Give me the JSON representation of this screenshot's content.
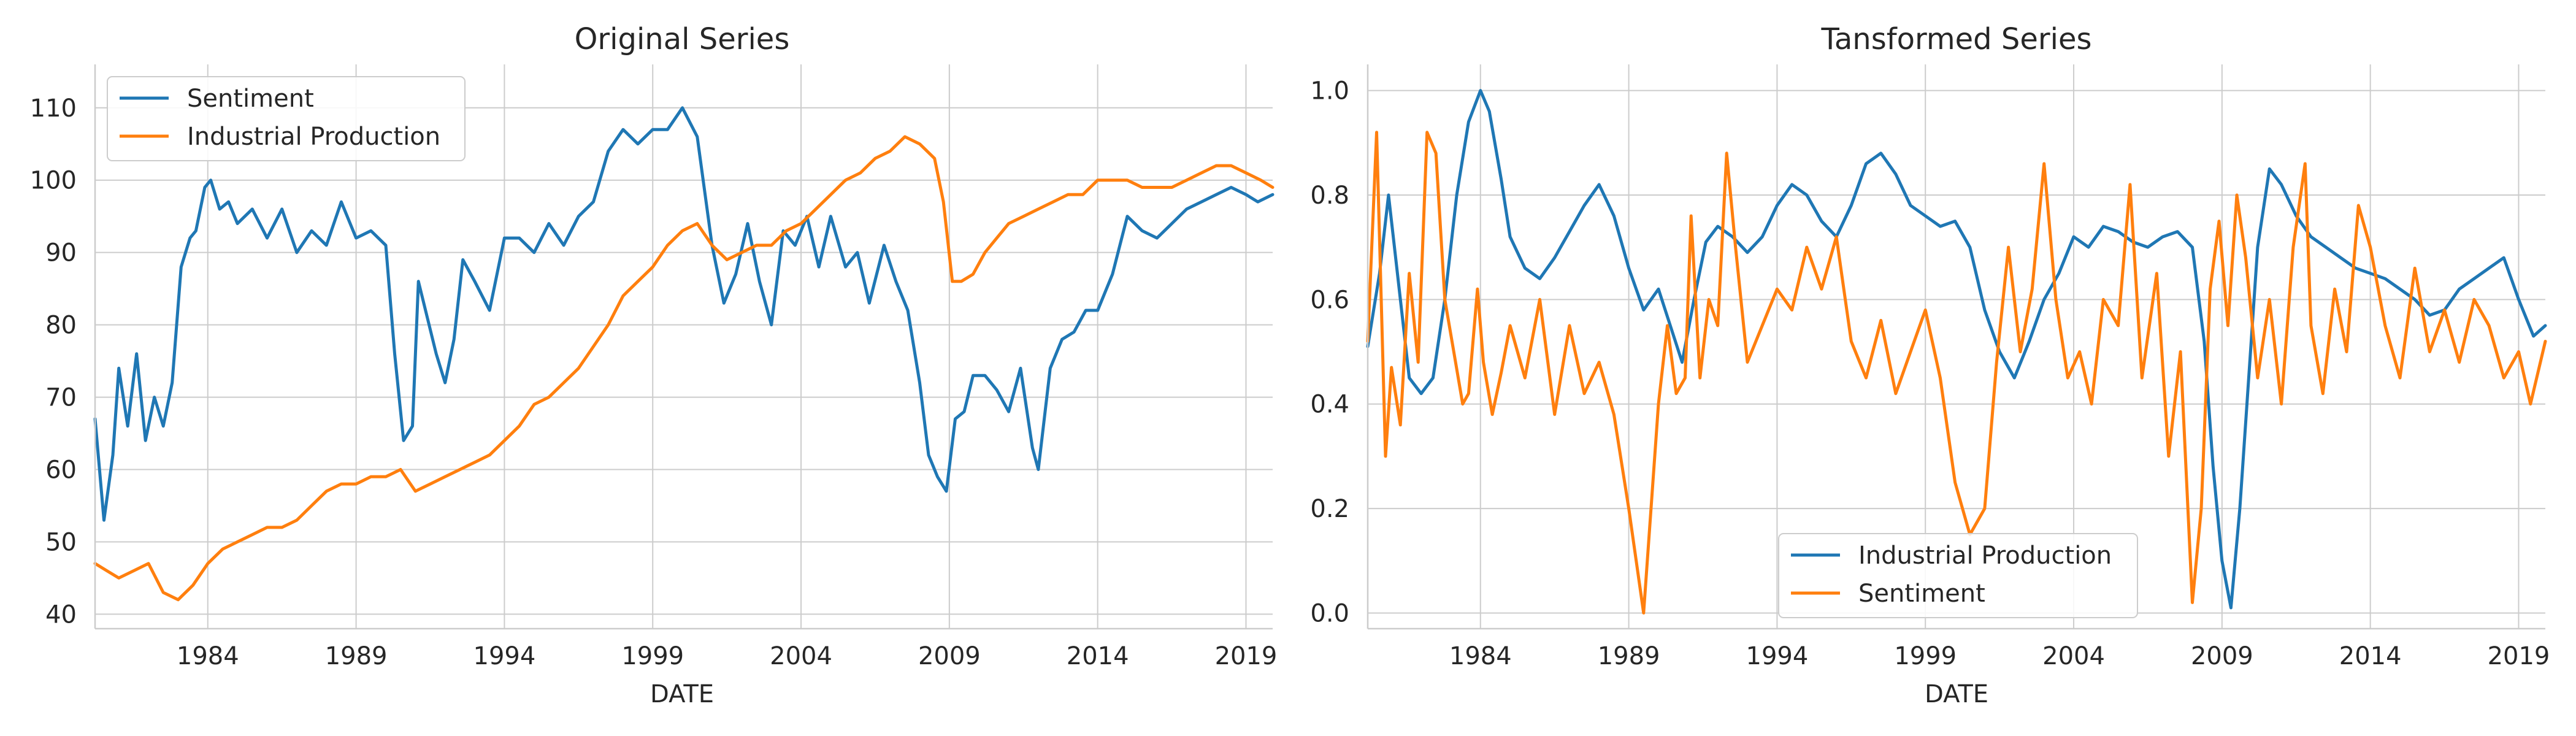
{
  "colors": {
    "blue": "#1f77b4",
    "orange": "#ff7f0e",
    "grid": "#cccccc",
    "text": "#262626"
  },
  "chart_data": [
    {
      "type": "line",
      "title": "Original Series",
      "xlabel": "DATE",
      "ylabel": "",
      "xlim": [
        1980.2,
        2019.9
      ],
      "ylim": [
        38,
        116
      ],
      "xticks": [
        1984,
        1989,
        1994,
        1999,
        2004,
        2009,
        2014,
        2019
      ],
      "xtick_labels": [
        "1984",
        "1989",
        "1994",
        "1999",
        "2004",
        "2009",
        "2014",
        "2019"
      ],
      "yticks": [
        40,
        50,
        60,
        70,
        80,
        90,
        100,
        110
      ],
      "ytick_labels": [
        "40",
        "50",
        "60",
        "70",
        "80",
        "90",
        "100",
        "110"
      ],
      "grid": true,
      "legend_position": "upper-left",
      "series": [
        {
          "name": "Sentiment",
          "color": "#1f77b4",
          "x": [
            1980.2,
            1980.5,
            1980.8,
            1981.0,
            1981.3,
            1981.6,
            1981.9,
            1982.2,
            1982.5,
            1982.8,
            1983.1,
            1983.4,
            1983.6,
            1983.9,
            1984.1,
            1984.4,
            1984.7,
            1985.0,
            1985.5,
            1986.0,
            1986.5,
            1987.0,
            1987.5,
            1988.0,
            1988.5,
            1989.0,
            1989.5,
            1990.0,
            1990.3,
            1990.6,
            1990.9,
            1991.1,
            1991.4,
            1991.7,
            1992.0,
            1992.3,
            1992.6,
            1993.0,
            1993.5,
            1994.0,
            1994.5,
            1995.0,
            1995.5,
            1996.0,
            1996.5,
            1997.0,
            1997.5,
            1998.0,
            1998.5,
            1999.0,
            1999.5,
            2000.0,
            2000.5,
            2001.0,
            2001.4,
            2001.8,
            2002.2,
            2002.6,
            2003.0,
            2003.4,
            2003.8,
            2004.2,
            2004.6,
            2005.0,
            2005.5,
            2005.9,
            2006.3,
            2006.8,
            2007.2,
            2007.6,
            2008.0,
            2008.3,
            2008.6,
            2008.9,
            2009.2,
            2009.5,
            2009.8,
            2010.2,
            2010.6,
            2011.0,
            2011.4,
            2011.8,
            2012.0,
            2012.4,
            2012.8,
            2013.2,
            2013.6,
            2014.0,
            2014.5,
            2015.0,
            2015.5,
            2016.0,
            2016.5,
            2017.0,
            2017.5,
            2018.0,
            2018.5,
            2019.0,
            2019.4,
            2019.9
          ],
          "values": [
            67,
            53,
            62,
            74,
            66,
            76,
            64,
            70,
            66,
            72,
            88,
            92,
            93,
            99,
            100,
            96,
            97,
            94,
            96,
            92,
            96,
            90,
            93,
            91,
            97,
            92,
            93,
            91,
            76,
            64,
            66,
            86,
            81,
            76,
            72,
            78,
            89,
            86,
            82,
            92,
            92,
            90,
            94,
            91,
            95,
            97,
            104,
            107,
            105,
            107,
            107,
            110,
            106,
            91,
            83,
            87,
            94,
            86,
            80,
            93,
            91,
            95,
            88,
            95,
            88,
            90,
            83,
            91,
            86,
            82,
            72,
            62,
            59,
            57,
            67,
            68,
            73,
            73,
            71,
            68,
            74,
            63,
            60,
            74,
            78,
            79,
            82,
            82,
            87,
            95,
            93,
            92,
            94,
            96,
            97,
            98,
            99,
            98,
            97,
            98
          ]
        },
        {
          "name": "Industrial Production",
          "color": "#ff7f0e",
          "x": [
            1980.2,
            1980.6,
            1981.0,
            1981.5,
            1982.0,
            1982.5,
            1983.0,
            1983.5,
            1984.0,
            1984.5,
            1985.0,
            1985.5,
            1986.0,
            1986.5,
            1987.0,
            1987.5,
            1988.0,
            1988.5,
            1989.0,
            1989.5,
            1990.0,
            1990.5,
            1991.0,
            1991.5,
            1992.0,
            1992.5,
            1993.0,
            1993.5,
            1994.0,
            1994.5,
            1995.0,
            1995.5,
            1996.0,
            1996.5,
            1997.0,
            1997.5,
            1998.0,
            1998.5,
            1999.0,
            1999.5,
            2000.0,
            2000.5,
            2001.0,
            2001.5,
            2002.0,
            2002.5,
            2003.0,
            2003.5,
            2004.0,
            2004.5,
            2005.0,
            2005.5,
            2006.0,
            2006.5,
            2007.0,
            2007.5,
            2008.0,
            2008.5,
            2008.8,
            2009.1,
            2009.4,
            2009.8,
            2010.2,
            2010.6,
            2011.0,
            2011.5,
            2012.0,
            2012.5,
            2013.0,
            2013.5,
            2014.0,
            2014.5,
            2015.0,
            2015.5,
            2016.0,
            2016.5,
            2017.0,
            2017.5,
            2018.0,
            2018.5,
            2019.0,
            2019.5,
            2019.9
          ],
          "values": [
            47,
            46,
            45,
            46,
            47,
            43,
            42,
            44,
            47,
            49,
            50,
            51,
            52,
            52,
            53,
            55,
            57,
            58,
            58,
            59,
            59,
            60,
            57,
            58,
            59,
            60,
            61,
            62,
            64,
            66,
            69,
            70,
            72,
            74,
            77,
            80,
            84,
            86,
            88,
            91,
            93,
            94,
            91,
            89,
            90,
            91,
            91,
            93,
            94,
            96,
            98,
            100,
            101,
            103,
            104,
            106,
            105,
            103,
            97,
            86,
            86,
            87,
            90,
            92,
            94,
            95,
            96,
            97,
            98,
            98,
            100,
            100,
            100,
            99,
            99,
            99,
            100,
            101,
            102,
            102,
            101,
            100,
            99
          ]
        }
      ]
    },
    {
      "type": "line",
      "title": "Tansformed Series",
      "xlabel": "DATE",
      "ylabel": "",
      "xlim": [
        1980.2,
        2019.9
      ],
      "ylim": [
        -0.03,
        1.05
      ],
      "xticks": [
        1984,
        1989,
        1994,
        1999,
        2004,
        2009,
        2014,
        2019
      ],
      "xtick_labels": [
        "1984",
        "1989",
        "1994",
        "1999",
        "2004",
        "2009",
        "2014",
        "2019"
      ],
      "yticks": [
        0.0,
        0.2,
        0.4,
        0.6,
        0.8,
        1.0
      ],
      "ytick_labels": [
        "0.0",
        "0.2",
        "0.4",
        "0.6",
        "0.8",
        "1.0"
      ],
      "grid": true,
      "legend_position": "lower-center",
      "series": [
        {
          "name": "Industrial Production",
          "color": "#1f77b4",
          "x": [
            1980.2,
            1980.6,
            1980.9,
            1981.2,
            1981.6,
            1982.0,
            1982.4,
            1982.8,
            1983.2,
            1983.6,
            1984.0,
            1984.3,
            1984.7,
            1985.0,
            1985.5,
            1986.0,
            1986.5,
            1987.0,
            1987.5,
            1988.0,
            1988.5,
            1989.0,
            1989.5,
            1990.0,
            1990.4,
            1990.8,
            1991.2,
            1991.6,
            1992.0,
            1992.5,
            1993.0,
            1993.5,
            1994.0,
            1994.5,
            1995.0,
            1995.5,
            1996.0,
            1996.5,
            1997.0,
            1997.5,
            1998.0,
            1998.5,
            1999.0,
            1999.5,
            2000.0,
            2000.5,
            2001.0,
            2001.5,
            2002.0,
            2002.5,
            2003.0,
            2003.5,
            2004.0,
            2004.5,
            2005.0,
            2005.5,
            2006.0,
            2006.5,
            2007.0,
            2007.5,
            2008.0,
            2008.4,
            2008.7,
            2009.0,
            2009.3,
            2009.6,
            2009.9,
            2010.2,
            2010.6,
            2011.0,
            2011.5,
            2012.0,
            2012.5,
            2013.0,
            2013.5,
            2014.0,
            2014.5,
            2015.0,
            2015.5,
            2016.0,
            2016.5,
            2017.0,
            2017.5,
            2018.0,
            2018.5,
            2019.0,
            2019.5,
            2019.9
          ],
          "values": [
            0.51,
            0.65,
            0.8,
            0.65,
            0.45,
            0.42,
            0.45,
            0.6,
            0.8,
            0.94,
            1.0,
            0.96,
            0.83,
            0.72,
            0.66,
            0.64,
            0.68,
            0.73,
            0.78,
            0.82,
            0.76,
            0.66,
            0.58,
            0.62,
            0.55,
            0.48,
            0.6,
            0.71,
            0.74,
            0.72,
            0.69,
            0.72,
            0.78,
            0.82,
            0.8,
            0.75,
            0.72,
            0.78,
            0.86,
            0.88,
            0.84,
            0.78,
            0.76,
            0.74,
            0.75,
            0.7,
            0.58,
            0.5,
            0.45,
            0.52,
            0.6,
            0.65,
            0.72,
            0.7,
            0.74,
            0.73,
            0.71,
            0.7,
            0.72,
            0.73,
            0.7,
            0.52,
            0.28,
            0.1,
            0.01,
            0.2,
            0.45,
            0.7,
            0.85,
            0.82,
            0.76,
            0.72,
            0.7,
            0.68,
            0.66,
            0.65,
            0.64,
            0.62,
            0.6,
            0.57,
            0.58,
            0.62,
            0.64,
            0.66,
            0.68,
            0.6,
            0.53,
            0.55
          ]
        },
        {
          "name": "Sentiment",
          "color": "#ff7f0e",
          "x": [
            1980.2,
            1980.5,
            1980.8,
            1981.0,
            1981.3,
            1981.6,
            1981.9,
            1982.2,
            1982.5,
            1982.8,
            1983.1,
            1983.4,
            1983.6,
            1983.9,
            1984.1,
            1984.4,
            1984.7,
            1985.0,
            1985.5,
            1986.0,
            1986.5,
            1987.0,
            1987.5,
            1988.0,
            1988.5,
            1989.0,
            1989.5,
            1990.0,
            1990.3,
            1990.6,
            1990.9,
            1991.1,
            1991.4,
            1991.7,
            1992.0,
            1992.3,
            1992.6,
            1993.0,
            1993.5,
            1994.0,
            1994.5,
            1995.0,
            1995.5,
            1996.0,
            1996.5,
            1997.0,
            1997.5,
            1998.0,
            1998.5,
            1999.0,
            1999.5,
            2000.0,
            2000.5,
            2001.0,
            2001.4,
            2001.8,
            2002.2,
            2002.6,
            2003.0,
            2003.4,
            2003.8,
            2004.2,
            2004.6,
            2005.0,
            2005.5,
            2005.9,
            2006.3,
            2006.8,
            2007.2,
            2007.6,
            2008.0,
            2008.3,
            2008.6,
            2008.9,
            2009.2,
            2009.5,
            2009.8,
            2010.2,
            2010.6,
            2011.0,
            2011.4,
            2011.8,
            2012.0,
            2012.4,
            2012.8,
            2013.2,
            2013.6,
            2014.0,
            2014.5,
            2015.0,
            2015.5,
            2016.0,
            2016.5,
            2017.0,
            2017.5,
            2018.0,
            2018.5,
            2019.0,
            2019.4,
            2019.9
          ],
          "values": [
            0.52,
            0.92,
            0.3,
            0.47,
            0.36,
            0.65,
            0.48,
            0.92,
            0.88,
            0.6,
            0.5,
            0.4,
            0.42,
            0.62,
            0.48,
            0.38,
            0.46,
            0.55,
            0.45,
            0.6,
            0.38,
            0.55,
            0.42,
            0.48,
            0.38,
            0.2,
            0.0,
            0.4,
            0.55,
            0.42,
            0.45,
            0.76,
            0.45,
            0.6,
            0.55,
            0.88,
            0.7,
            0.48,
            0.55,
            0.62,
            0.58,
            0.7,
            0.62,
            0.72,
            0.52,
            0.45,
            0.56,
            0.42,
            0.5,
            0.58,
            0.45,
            0.25,
            0.15,
            0.2,
            0.48,
            0.7,
            0.5,
            0.62,
            0.86,
            0.6,
            0.45,
            0.5,
            0.4,
            0.6,
            0.55,
            0.82,
            0.45,
            0.65,
            0.3,
            0.5,
            0.02,
            0.2,
            0.62,
            0.75,
            0.55,
            0.8,
            0.68,
            0.45,
            0.6,
            0.4,
            0.7,
            0.86,
            0.55,
            0.42,
            0.62,
            0.5,
            0.78,
            0.7,
            0.55,
            0.45,
            0.66,
            0.5,
            0.58,
            0.48,
            0.6,
            0.55,
            0.45,
            0.5,
            0.4,
            0.52
          ]
        }
      ]
    }
  ]
}
